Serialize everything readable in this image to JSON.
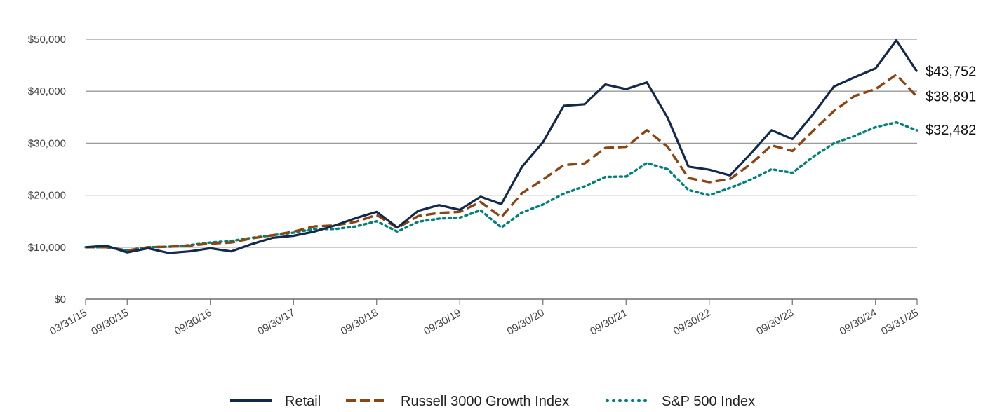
{
  "chart_data": {
    "type": "line",
    "title": "",
    "xlabel": "",
    "ylabel": "",
    "ylim": [
      0,
      50000
    ],
    "y_ticks": [
      "$0",
      "$10,000",
      "$20,000",
      "$30,000",
      "$40,000",
      "$50,000"
    ],
    "x_ticks": [
      "03/31/15",
      "09/30/15",
      "09/30/16",
      "09/30/17",
      "09/30/18",
      "09/30/19",
      "09/30/20",
      "09/30/21",
      "09/30/22",
      "09/30/23",
      "09/30/24",
      "03/31/25"
    ],
    "x": [
      "03/31/15",
      "06/30/15",
      "09/30/15",
      "12/31/15",
      "03/31/16",
      "06/30/16",
      "09/30/16",
      "12/31/16",
      "03/31/17",
      "06/30/17",
      "09/30/17",
      "12/31/17",
      "03/31/18",
      "06/30/18",
      "09/30/18",
      "12/31/18",
      "03/31/19",
      "06/30/19",
      "09/30/19",
      "12/31/19",
      "03/31/20",
      "06/30/20",
      "09/30/20",
      "12/31/20",
      "03/31/21",
      "06/30/21",
      "09/30/21",
      "12/31/21",
      "03/31/22",
      "06/30/22",
      "09/30/22",
      "12/31/22",
      "03/31/23",
      "06/30/23",
      "09/30/23",
      "12/31/23",
      "03/31/24",
      "06/30/24",
      "09/30/24",
      "12/31/24",
      "03/31/25"
    ],
    "grid": "horizontal",
    "legend_position": "bottom",
    "series": [
      {
        "name": "Retail",
        "color": "#13294b",
        "style": "solid",
        "end_label": "$43,752",
        "values": [
          10000,
          10300,
          9000,
          9800,
          8900,
          9200,
          9800,
          9200,
          10600,
          11800,
          12200,
          13000,
          14200,
          15600,
          16800,
          13800,
          17000,
          18100,
          17200,
          19700,
          18300,
          25500,
          30200,
          37200,
          37500,
          41300,
          40400,
          41700,
          34900,
          25500,
          24900,
          23800,
          28000,
          32500,
          30800,
          35600,
          40900,
          42700,
          44400,
          49800,
          43752
        ]
      },
      {
        "name": "Russell 3000 Growth Index",
        "color": "#8b4513",
        "style": "dashed",
        "end_label": "$38,891",
        "values": [
          10000,
          10000,
          9400,
          10000,
          10100,
          10300,
          10700,
          10900,
          11700,
          12300,
          13000,
          14000,
          14200,
          14900,
          16200,
          13700,
          16000,
          16600,
          16800,
          18700,
          15800,
          20400,
          23000,
          25800,
          26100,
          29100,
          29300,
          32500,
          29300,
          23300,
          22500,
          23100,
          26000,
          29600,
          28500,
          32400,
          36200,
          39100,
          40400,
          43200,
          38891
        ]
      },
      {
        "name": "S&P 500 Index",
        "color": "#00807a",
        "style": "dotted",
        "end_label": "$32,482",
        "values": [
          10000,
          10000,
          9400,
          10000,
          10100,
          10400,
          10900,
          11200,
          11800,
          12300,
          12800,
          13500,
          13500,
          14000,
          15000,
          13000,
          14900,
          15500,
          15700,
          17100,
          13800,
          16700,
          18200,
          20300,
          21700,
          23500,
          23600,
          26200,
          25000,
          21000,
          20000,
          21400,
          23000,
          25000,
          24300,
          27400,
          30000,
          31400,
          33100,
          34000,
          32482
        ]
      }
    ]
  }
}
